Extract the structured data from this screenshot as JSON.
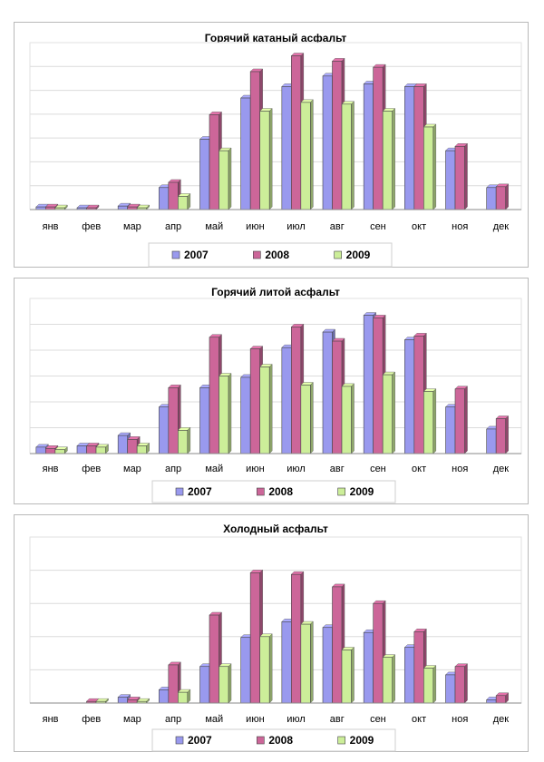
{
  "chart_data": [
    {
      "type": "bar",
      "title": "Горячий катаный асфальт",
      "categories": [
        "янв",
        "фев",
        "мар",
        "апр",
        "май",
        "июн",
        "июл",
        "авг",
        "сен",
        "окт",
        "ноя",
        "дек"
      ],
      "ylim": [
        0,
        190
      ],
      "grid": true,
      "legend_position": "bottom",
      "series": [
        {
          "name": "2007",
          "color": "#9999ee",
          "values": [
            3,
            2,
            4,
            25,
            80,
            127,
            140,
            152,
            143,
            140,
            67,
            25
          ]
        },
        {
          "name": "2008",
          "color": "#cc6699",
          "values": [
            3,
            2,
            3,
            31,
            108,
            157,
            175,
            169,
            162,
            140,
            72,
            26
          ]
        },
        {
          "name": "2009",
          "color": "#ccee99",
          "values": [
            2,
            0,
            2,
            15,
            67,
            112,
            122,
            120,
            112,
            94,
            0,
            0
          ]
        }
      ]
    },
    {
      "type": "bar",
      "title": "Горячий литой асфальт",
      "categories": [
        "янв",
        "фев",
        "мар",
        "апр",
        "май",
        "июн",
        "июл",
        "авг",
        "сен",
        "окт",
        "ноя",
        "дек"
      ],
      "ylim": [
        0,
        60
      ],
      "grid": true,
      "legend_position": "bottom",
      "series": [
        {
          "name": "2007",
          "color": "#9999ee",
          "values": [
            2.5,
            3,
            7,
            18,
            25.5,
            29.5,
            41,
            47,
            53.5,
            44,
            18,
            9.5
          ]
        },
        {
          "name": "2008",
          "color": "#cc6699",
          "values": [
            2,
            3,
            5.5,
            25.5,
            45,
            40.5,
            49,
            43.5,
            52.5,
            45.5,
            25,
            13.5
          ]
        },
        {
          "name": "2009",
          "color": "#ccee99",
          "values": [
            1.5,
            2.5,
            3,
            9,
            30,
            33.5,
            26.5,
            26,
            30.5,
            24,
            0,
            0
          ]
        }
      ]
    },
    {
      "type": "bar",
      "title": "Холодный асфальт",
      "categories": [
        "янв",
        "фев",
        "мар",
        "апр",
        "май",
        "июн",
        "июл",
        "авг",
        "сен",
        "окт",
        "ноя",
        "дек"
      ],
      "ylim": [
        0,
        100
      ],
      "grid": true,
      "legend_position": "bottom",
      "series": [
        {
          "name": "2007",
          "color": "#9999ee",
          "values": [
            0,
            0,
            3.5,
            8,
            22,
            39.5,
            49,
            45.5,
            42.5,
            33.5,
            17,
            2
          ]
        },
        {
          "name": "2008",
          "color": "#cc6699",
          "values": [
            0,
            1,
            2,
            23,
            53,
            78.5,
            77.5,
            70,
            60,
            43,
            22,
            4.5
          ]
        },
        {
          "name": "2009",
          "color": "#ccee99",
          "values": [
            0,
            1,
            1,
            6.5,
            22,
            40,
            47.5,
            32,
            27.5,
            21,
            0,
            0
          ]
        }
      ]
    }
  ]
}
